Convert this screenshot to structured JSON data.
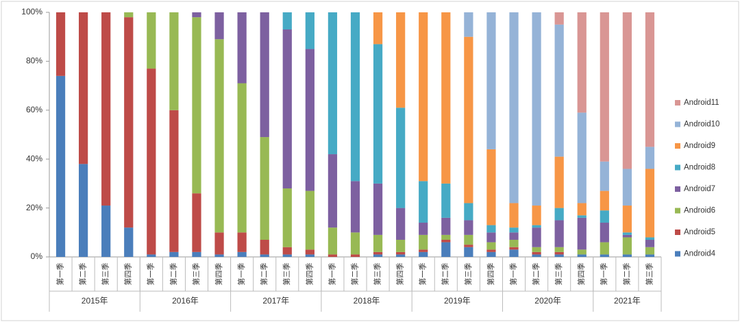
{
  "chart_data": {
    "type": "stacked-bar",
    "groups": [
      {
        "name": "2015年",
        "categories": [
          "第一季",
          "第二季",
          "第三季",
          "第四季"
        ]
      },
      {
        "name": "2016年",
        "categories": [
          "第一季",
          "第二季",
          "第三季",
          "第四季"
        ]
      },
      {
        "name": "2017年",
        "categories": [
          "第一季",
          "第二季",
          "第三季",
          "第四季"
        ]
      },
      {
        "name": "2018年",
        "categories": [
          "第一季",
          "第二季",
          "第三季",
          "第四季"
        ]
      },
      {
        "name": "2019年",
        "categories": [
          "第一季",
          "第二季",
          "第三季",
          "第四季"
        ]
      },
      {
        "name": "2020年",
        "categories": [
          "第一季",
          "第二季",
          "第三季",
          "第四季"
        ]
      },
      {
        "name": "2021年",
        "categories": [
          "第一季",
          "第二季",
          "第三季"
        ]
      }
    ],
    "series": [
      {
        "name": "Android4",
        "color": "#4a7ebb",
        "values": [
          74,
          38,
          21,
          12,
          1,
          2,
          2,
          1,
          2,
          1,
          1,
          1,
          0,
          0,
          1,
          1,
          2,
          6,
          4,
          2,
          3,
          1,
          1,
          1,
          1,
          1,
          1
        ]
      },
      {
        "name": "Android5",
        "color": "#be4b48",
        "values": [
          26,
          62,
          79,
          86,
          76,
          58,
          24,
          9,
          8,
          6,
          3,
          2,
          1,
          1,
          1,
          1,
          1,
          1,
          1,
          1,
          1,
          1,
          1,
          0,
          0,
          0,
          0
        ]
      },
      {
        "name": "Android6",
        "color": "#98b954",
        "values": [
          0,
          0,
          0,
          2,
          23,
          40,
          72,
          79,
          61,
          42,
          24,
          24,
          11,
          9,
          7,
          5,
          6,
          2,
          4,
          3,
          3,
          2,
          2,
          2,
          5,
          7,
          3
        ]
      },
      {
        "name": "Android7",
        "color": "#7d60a0",
        "values": [
          0,
          0,
          0,
          0,
          0,
          0,
          2,
          11,
          29,
          51,
          65,
          58,
          30,
          21,
          21,
          13,
          5,
          7,
          6,
          4,
          3,
          8,
          11,
          13,
          8,
          1,
          3
        ]
      },
      {
        "name": "Android8",
        "color": "#46aac5",
        "values": [
          0,
          0,
          0,
          0,
          0,
          0,
          0,
          0,
          0,
          0,
          7,
          15,
          58,
          69,
          57,
          41,
          17,
          14,
          7,
          3,
          2,
          1,
          5,
          1,
          5,
          1,
          1
        ]
      },
      {
        "name": "Android9",
        "color": "#f79646",
        "values": [
          0,
          0,
          0,
          0,
          0,
          0,
          0,
          0,
          0,
          0,
          0,
          0,
          0,
          0,
          13,
          39,
          69,
          70,
          68,
          31,
          10,
          8,
          21,
          5,
          8,
          11,
          28
        ]
      },
      {
        "name": "Android10",
        "color": "#95b3d7",
        "values": [
          0,
          0,
          0,
          0,
          0,
          0,
          0,
          0,
          0,
          0,
          0,
          0,
          0,
          0,
          0,
          0,
          0,
          0,
          10,
          56,
          78,
          79,
          54,
          37,
          12,
          15,
          9
        ]
      },
      {
        "name": "Android11",
        "color": "#d99694",
        "values": [
          0,
          0,
          0,
          0,
          0,
          0,
          0,
          0,
          0,
          0,
          0,
          0,
          0,
          0,
          0,
          0,
          0,
          0,
          0,
          0,
          0,
          0,
          5,
          41,
          61,
          64,
          55
        ]
      }
    ],
    "ylim": [
      0,
      100
    ],
    "yticks": [
      {
        "value": 0,
        "label": "0%"
      },
      {
        "value": 20,
        "label": "20%"
      },
      {
        "value": 40,
        "label": "40%"
      },
      {
        "value": 60,
        "label": "60%"
      },
      {
        "value": 80,
        "label": "80%"
      },
      {
        "value": 100,
        "label": "100%"
      }
    ],
    "grid": false,
    "legend": "right"
  }
}
